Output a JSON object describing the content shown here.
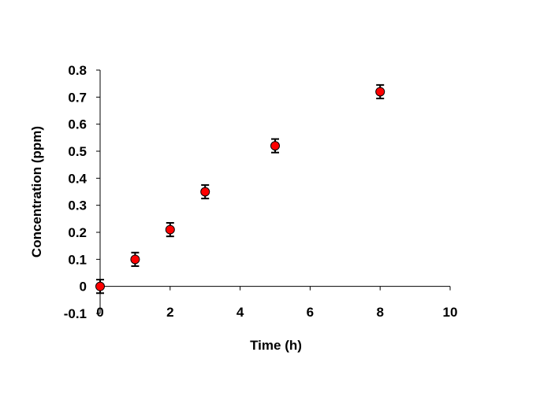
{
  "chart_data": {
    "type": "scatter",
    "title": "",
    "xlabel": "Time (h)",
    "ylabel": "Concentration (ppm)",
    "xlim": [
      0,
      10
    ],
    "ylim": [
      -0.1,
      0.8
    ],
    "x_ticks": [
      "0",
      "2",
      "4",
      "6",
      "8",
      "10"
    ],
    "y_ticks": [
      "-0.1",
      "0",
      "0.1",
      "0.2",
      "0.3",
      "0.4",
      "0.5",
      "0.6",
      "0.7",
      "0.8"
    ],
    "x_tick_values": [
      0,
      2,
      4,
      6,
      8,
      10
    ],
    "y_tick_values": [
      -0.1,
      0,
      0.1,
      0.2,
      0.3,
      0.4,
      0.5,
      0.6,
      0.7,
      0.8
    ],
    "grid": false,
    "legend": "none",
    "marker_color": "#ff0000",
    "series": [
      {
        "x": [
          0,
          1,
          2,
          3,
          5,
          8
        ],
        "y": [
          0,
          0.1,
          0.21,
          0.35,
          0.52,
          0.72
        ],
        "error": [
          0.025,
          0.025,
          0.025,
          0.025,
          0.025,
          0.025
        ]
      }
    ]
  }
}
